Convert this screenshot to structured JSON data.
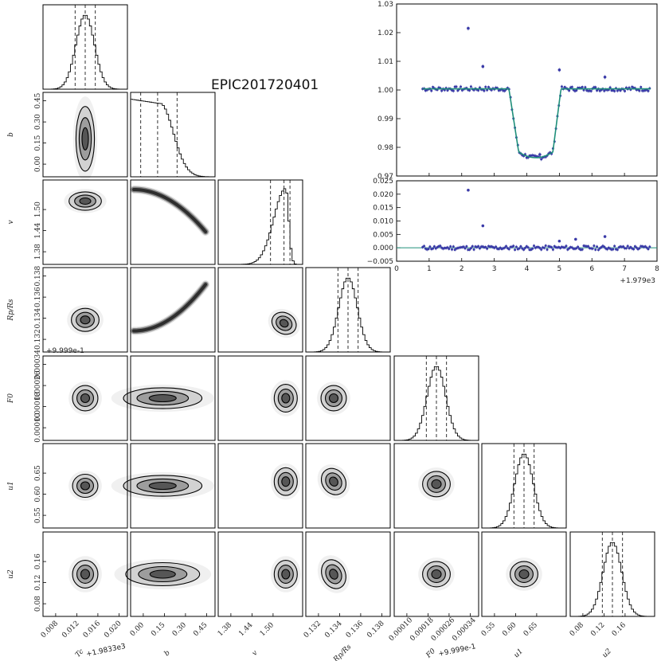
{
  "title": "EPIC201720401",
  "colors": {
    "frame": "#000000",
    "data_points": "#3a3aa8",
    "model": "#1f8f7a",
    "density": "#000000"
  },
  "chart_data": {
    "type": "corner",
    "parameters": [
      {
        "key": "Tc",
        "label": "Tc",
        "offset_label": "+1.9833e3",
        "ticks": [
          "0.008",
          "0.012",
          "0.016",
          "0.020"
        ],
        "range": [
          0.005,
          0.023
        ],
        "mean": 0.0135,
        "sigma": 0.0022,
        "quantiles": [
          0.0113,
          0.0135,
          0.0157
        ]
      },
      {
        "key": "b",
        "label": "b",
        "offset_label": "",
        "ticks": [
          "0.00",
          "0.15",
          "0.30",
          "0.45"
        ],
        "range": [
          -0.02,
          0.5
        ],
        "mean": 0.15,
        "sigma": 0.15,
        "quantiles": [
          0.03,
          0.12,
          0.24
        ]
      },
      {
        "key": "v",
        "label": "v",
        "offset_label": "",
        "ticks": [
          "1.38",
          "1.44",
          "1.50"
        ],
        "range": [
          1.335,
          1.54
        ],
        "mean": 1.505,
        "sigma": 0.018,
        "quantiles": [
          1.474,
          1.506,
          1.517
        ]
      },
      {
        "key": "RpRs",
        "label": "Rp/Rs",
        "offset_label": "",
        "ticks": [
          "0.132",
          "0.134",
          "0.136",
          "0.138"
        ],
        "range": [
          0.1307,
          0.1394
        ],
        "mean": 0.1332,
        "sigma": 0.00075,
        "quantiles": [
          0.1325,
          0.1332,
          0.134
        ]
      },
      {
        "key": "F0",
        "label": "F0",
        "offset_label": "+9.999e-1",
        "ticks": [
          "0.00010",
          "0.00018",
          "0.00026",
          "0.00034"
        ],
        "range": [
          2e-05,
          0.00032
        ],
        "mean": 0.000163,
        "sigma": 3e-05,
        "quantiles": [
          0.000133,
          0.000163,
          0.000193
        ]
      },
      {
        "key": "u1",
        "label": "u1",
        "offset_label": "",
        "ticks": [
          "0.55",
          "0.60",
          "0.65"
        ],
        "range": [
          0.505,
          0.675
        ],
        "mean": 0.59,
        "sigma": 0.015,
        "quantiles": [
          0.576,
          0.59,
          0.604
        ]
      },
      {
        "key": "u2",
        "label": "u2",
        "offset_label": "",
        "ticks": [
          "0.08",
          "0.12",
          "0.16"
        ],
        "range": [
          0.05,
          0.19
        ],
        "mean": 0.12,
        "sigma": 0.015,
        "quantiles": [
          0.105,
          0.12,
          0.135
        ]
      }
    ],
    "light_curve": {
      "type": "scatter",
      "ylim": [
        0.97,
        1.03
      ],
      "yticks": [
        "0.97",
        "0.98",
        "0.99",
        "1.00",
        "1.01",
        "1.02",
        "1.03"
      ],
      "xlim": [
        0,
        8
      ],
      "transit": {
        "ingress_start": 3.45,
        "ingress_end": 3.75,
        "egress_start": 4.8,
        "egress_end": 5.05,
        "depth": 0.022,
        "baseline": 1.0004
      },
      "outliers": [
        [
          2.2,
          1.0215
        ],
        [
          2.65,
          1.0082
        ],
        [
          6.4,
          1.0045
        ],
        [
          4.4,
          0.9775
        ],
        [
          5.0,
          1.007
        ]
      ]
    },
    "residuals": {
      "type": "scatter",
      "ylim": [
        -0.005,
        0.025
      ],
      "yticks": [
        "−0.005",
        "0.000",
        "0.005",
        "0.010",
        "0.015",
        "0.020",
        "0.025"
      ],
      "xlim": [
        0,
        8
      ],
      "xticks": [
        "0",
        "1",
        "2",
        "3",
        "4",
        "5",
        "6",
        "7",
        "8"
      ],
      "x_offset_label": "+1.979e3",
      "outliers": [
        [
          2.2,
          0.0215
        ],
        [
          2.65,
          0.0082
        ],
        [
          6.4,
          0.0042
        ],
        [
          5.0,
          0.0025
        ],
        [
          5.5,
          0.0032
        ]
      ]
    }
  }
}
